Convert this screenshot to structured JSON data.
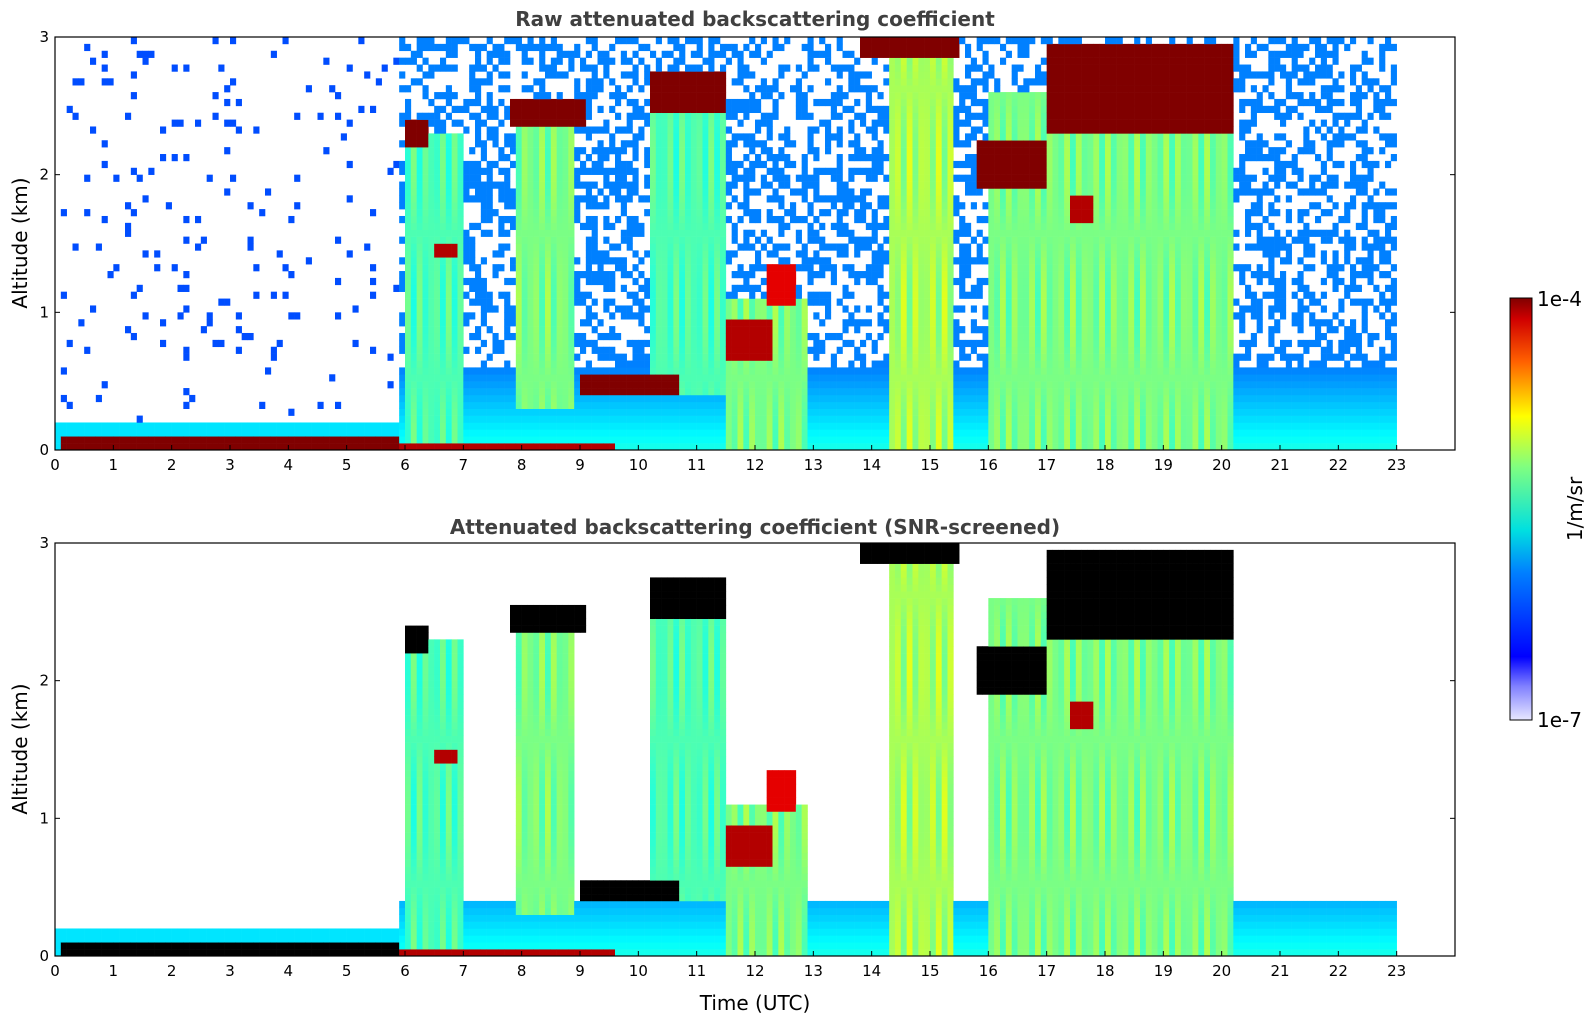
{
  "chart_data": [
    {
      "type": "heatmap",
      "title": "Raw attenuated backscattering coefficient",
      "xlabel": "",
      "ylabel": "Altitude (km)",
      "xlim": [
        0,
        24
      ],
      "ylim": [
        0,
        3
      ],
      "x_ticks": [
        "0",
        "1",
        "2",
        "3",
        "4",
        "5",
        "6",
        "7",
        "8",
        "9",
        "10",
        "11",
        "12",
        "13",
        "14",
        "15",
        "16",
        "17",
        "18",
        "19",
        "20",
        "21",
        "22",
        "23"
      ],
      "y_ticks": [
        "0",
        "1",
        "2",
        "3"
      ],
      "data_end_time": 23,
      "colorscale": "jet",
      "features": [
        {
          "kind": "surface_layer",
          "t0": 0.1,
          "t1": 5.9,
          "z0": 0.0,
          "z1": 0.12,
          "intensity": 1.0
        },
        {
          "kind": "surface_layer",
          "t0": 5.9,
          "t1": 9.6,
          "z0": 0.0,
          "z1": 0.06,
          "intensity": 0.95
        },
        {
          "kind": "cloud_layer",
          "t0": 6.0,
          "t1": 6.4,
          "z0": 2.22,
          "z1": 2.38,
          "intensity": 1.0
        },
        {
          "kind": "cloud_layer",
          "t0": 6.5,
          "t1": 6.9,
          "z0": 1.38,
          "z1": 1.48,
          "intensity": 0.95
        },
        {
          "kind": "cloud_layer",
          "t0": 7.8,
          "t1": 9.1,
          "z0": 2.35,
          "z1": 2.55,
          "intensity": 1.0
        },
        {
          "kind": "cloud_layer",
          "t0": 10.2,
          "t1": 11.5,
          "z0": 2.45,
          "z1": 2.75,
          "intensity": 1.0
        },
        {
          "kind": "cloud_layer",
          "t0": 9.0,
          "t1": 10.7,
          "z0": 0.38,
          "z1": 0.55,
          "intensity": 1.0
        },
        {
          "kind": "cloud_layer",
          "t0": 11.5,
          "t1": 12.3,
          "z0": 0.65,
          "z1": 0.95,
          "intensity": 0.95
        },
        {
          "kind": "cloud_layer",
          "t0": 12.2,
          "t1": 12.7,
          "z0": 1.05,
          "z1": 1.35,
          "intensity": 0.9
        },
        {
          "kind": "cloud_layer",
          "t0": 13.8,
          "t1": 15.5,
          "z0": 2.85,
          "z1": 3.0,
          "intensity": 1.0
        },
        {
          "kind": "cloud_layer",
          "t0": 15.8,
          "t1": 17.0,
          "z0": 1.9,
          "z1": 2.25,
          "intensity": 1.0
        },
        {
          "kind": "cloud_layer",
          "t0": 17.0,
          "t1": 20.2,
          "z0": 2.3,
          "z1": 2.95,
          "intensity": 1.0
        },
        {
          "kind": "cloud_layer",
          "t0": 17.4,
          "t1": 17.8,
          "z0": 1.65,
          "z1": 1.85,
          "intensity": 0.95
        },
        {
          "kind": "fallstreaks",
          "t0": 6.0,
          "t1": 7.0,
          "z0": 0.0,
          "z1": 2.3,
          "intensity": 0.5
        },
        {
          "kind": "fallstreaks",
          "t0": 7.9,
          "t1": 8.9,
          "z0": 0.3,
          "z1": 2.4,
          "intensity": 0.55
        },
        {
          "kind": "fallstreaks",
          "t0": 10.2,
          "t1": 11.5,
          "z0": 0.4,
          "z1": 2.5,
          "intensity": 0.5
        },
        {
          "kind": "fallstreaks",
          "t0": 11.5,
          "t1": 12.9,
          "z0": 0.0,
          "z1": 1.1,
          "intensity": 0.55
        },
        {
          "kind": "fallstreaks",
          "t0": 14.3,
          "t1": 15.4,
          "z0": 0.0,
          "z1": 2.9,
          "intensity": 0.6
        },
        {
          "kind": "fallstreaks",
          "t0": 16.0,
          "t1": 20.2,
          "z0": 0.0,
          "z1": 2.6,
          "intensity": 0.55
        }
      ]
    },
    {
      "type": "heatmap",
      "title": "Attenuated backscattering coefficient (SNR-screened)",
      "xlabel": "Time (UTC)",
      "ylabel": "Altitude (km)",
      "xlim": [
        0,
        24
      ],
      "ylim": [
        0,
        3
      ],
      "x_ticks": [
        "0",
        "1",
        "2",
        "3",
        "4",
        "5",
        "6",
        "7",
        "8",
        "9",
        "10",
        "11",
        "12",
        "13",
        "14",
        "15",
        "16",
        "17",
        "18",
        "19",
        "20",
        "21",
        "22",
        "23"
      ],
      "y_ticks": [
        "0",
        "1",
        "2",
        "3"
      ],
      "data_end_time": 23,
      "colorscale": "jet",
      "masked_color": "#000000"
    }
  ],
  "colorbar": {
    "label": "1/m/sr",
    "max_label": "1e-4",
    "min_label": "1e-7",
    "vmin": 1e-07,
    "vmax": 0.0001,
    "scale": "log"
  }
}
